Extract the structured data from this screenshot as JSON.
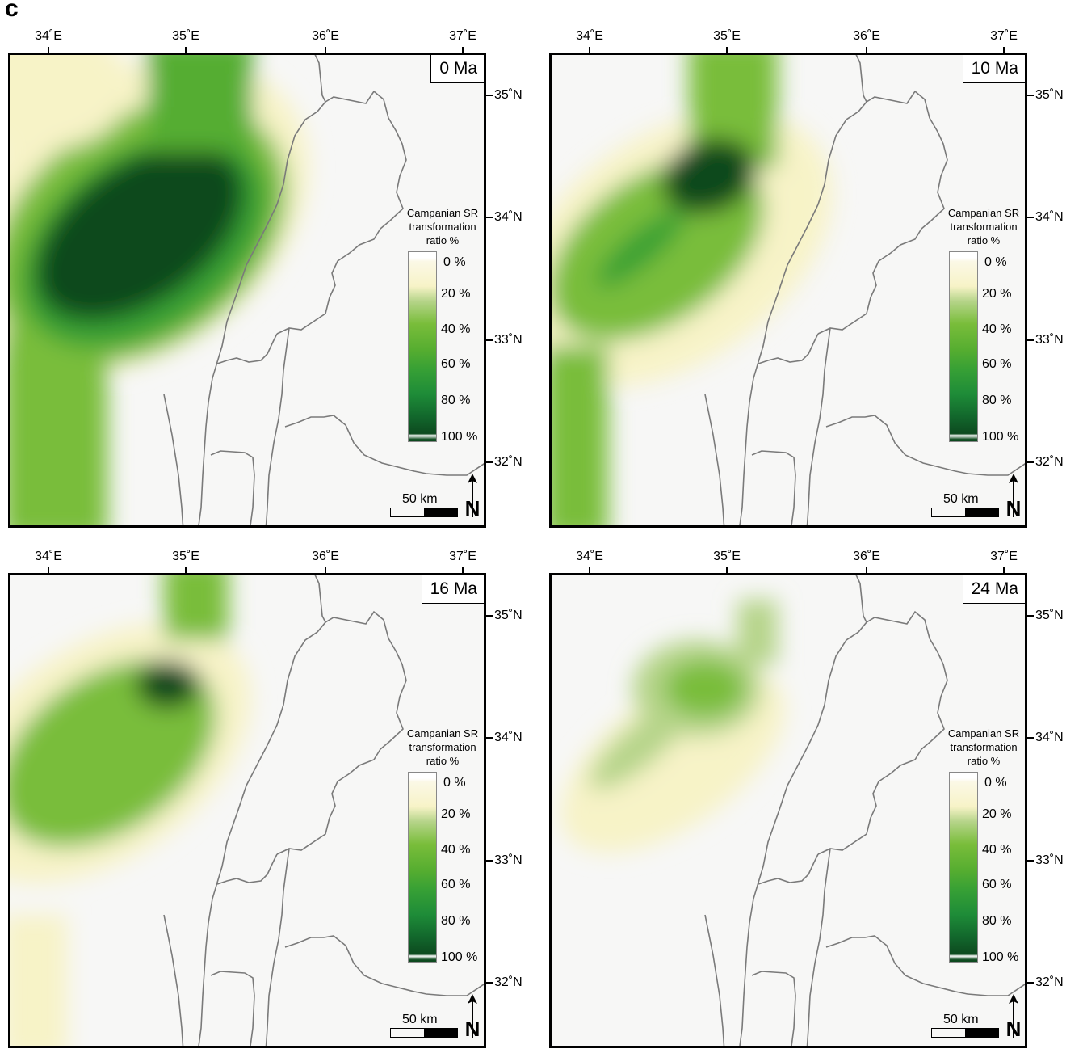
{
  "figure_label": "c",
  "panels": [
    {
      "age": "0 Ma"
    },
    {
      "age": "10 Ma"
    },
    {
      "age": "16 Ma"
    },
    {
      "age": "24 Ma"
    }
  ],
  "axes": {
    "lon_labels": [
      "34˚E",
      "35˚E",
      "36˚E",
      "37˚E"
    ],
    "lat_labels": [
      "35˚N",
      "34˚N",
      "33˚N",
      "32˚N"
    ]
  },
  "legend": {
    "title_lines": [
      "Campanian SR",
      "transformation",
      "ratio %"
    ],
    "ticks": [
      "0 %",
      "20 %",
      "40 %",
      "60 %",
      "80 %",
      "100 %"
    ],
    "colors": [
      "#ffffff",
      "#f7f3c7",
      "#79bd3a",
      "#37a035",
      "#1e8c38",
      "#0d4a1f"
    ]
  },
  "scale_bar": {
    "label": "50 km"
  },
  "north_arrow": {
    "label": "N"
  }
}
